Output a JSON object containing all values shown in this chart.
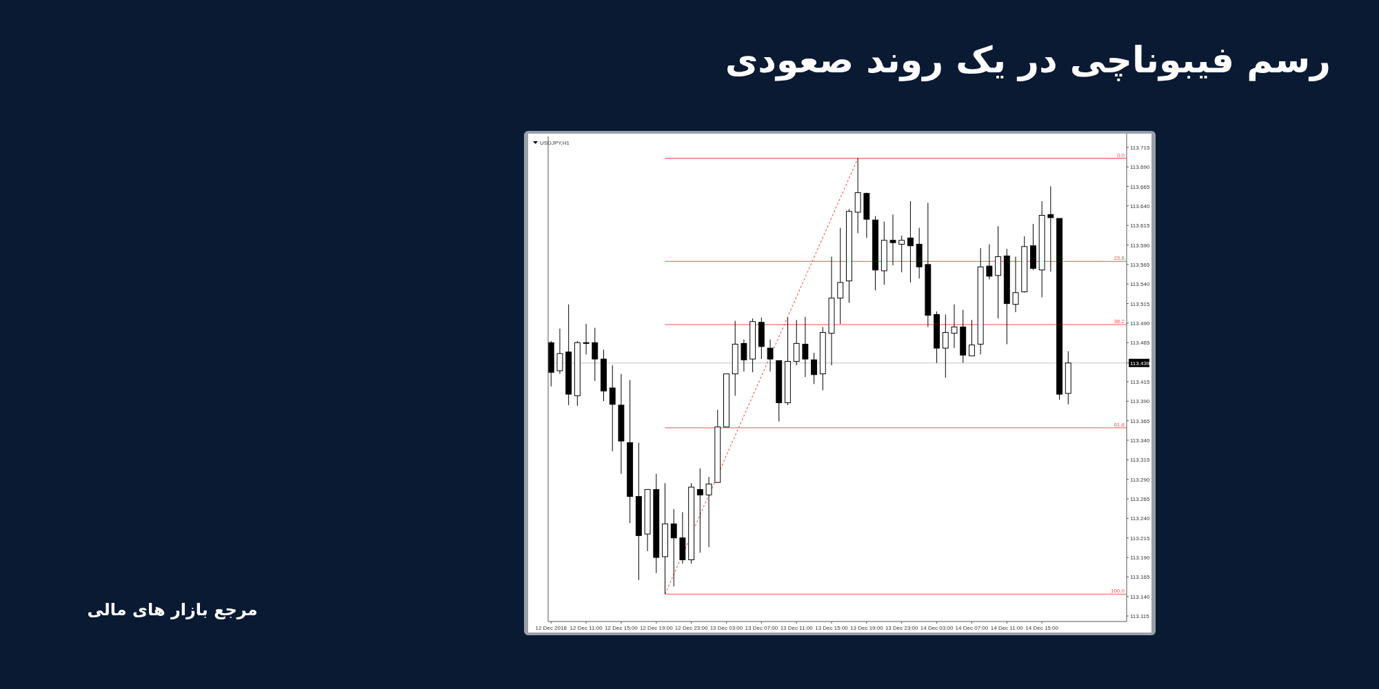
{
  "chart_data": {
    "type": "candlestick",
    "title": "رسم فیبوناچی در یک روند صعودی",
    "annotations": [
      "USDJPY,H1",
      "مرجع بازار های مالی",
      {
        "text": "0.0",
        "x": "2018-12-15T00:40",
        "y": 113.701
      },
      {
        "text": "23.6",
        "x": "2018-12-15T00:40",
        "y": 113.569
      },
      {
        "text": "38.2",
        "x": "2018-12-15T00:40",
        "y": 113.488
      },
      {
        "text": "61.8",
        "x": "2018-12-15T00:40",
        "y": 113.356
      },
      {
        "text": "100.0",
        "x": "2018-12-15T00:40",
        "y": 113.143
      }
    ],
    "x": [
      "2018-12-12T07:00",
      "2018-12-12T08:00",
      "2018-12-12T09:00",
      "2018-12-12T10:00",
      "2018-12-12T11:00",
      "2018-12-12T12:00",
      "2018-12-12T13:00",
      "2018-12-12T14:00",
      "2018-12-12T15:00",
      "2018-12-12T16:00",
      "2018-12-12T17:00",
      "2018-12-12T18:00",
      "2018-12-12T19:00",
      "2018-12-12T20:00",
      "2018-12-12T21:00",
      "2018-12-12T22:00",
      "2018-12-12T23:00",
      "2018-12-13T00:00",
      "2018-12-13T01:00",
      "2018-12-13T02:00",
      "2018-12-13T03:00",
      "2018-12-13T04:00",
      "2018-12-13T05:00",
      "2018-12-13T06:00",
      "2018-12-13T07:00",
      "2018-12-13T08:00",
      "2018-12-13T09:00",
      "2018-12-13T10:00",
      "2018-12-13T11:00",
      "2018-12-13T12:00",
      "2018-12-13T13:00",
      "2018-12-13T14:00",
      "2018-12-13T15:00",
      "2018-12-13T16:00",
      "2018-12-13T17:00",
      "2018-12-13T18:00",
      "2018-12-13T19:00",
      "2018-12-13T20:00",
      "2018-12-13T21:00",
      "2018-12-13T22:00",
      "2018-12-13T23:00",
      "2018-12-14T00:00",
      "2018-12-14T01:00",
      "2018-12-14T02:00",
      "2018-12-14T03:00",
      "2018-12-14T04:00",
      "2018-12-14T05:00",
      "2018-12-14T06:00",
      "2018-12-14T07:00",
      "2018-12-14T08:00",
      "2018-12-14T09:00",
      "2018-12-14T10:00",
      "2018-12-14T11:00",
      "2018-12-14T12:00",
      "2018-12-14T13:00",
      "2018-12-14T14:00",
      "2018-12-14T15:00",
      "2018-12-14T16:00",
      "2018-12-14T17:00",
      "2018-12-14T18:00"
    ],
    "ohlc": [
      [
        113.465,
        113.467,
        113.409,
        113.427
      ],
      [
        113.429,
        113.483,
        113.425,
        113.451
      ],
      [
        113.453,
        113.514,
        113.385,
        113.399
      ],
      [
        113.397,
        113.467,
        113.384,
        113.465
      ],
      [
        113.465,
        113.489,
        113.45,
        113.464
      ],
      [
        113.465,
        113.484,
        113.416,
        113.444
      ],
      [
        113.444,
        113.456,
        113.39,
        113.403
      ],
      [
        113.407,
        113.436,
        113.326,
        113.386
      ],
      [
        113.385,
        113.425,
        113.297,
        113.339
      ],
      [
        113.337,
        113.417,
        113.234,
        113.268
      ],
      [
        113.268,
        113.337,
        113.161,
        113.218
      ],
      [
        113.22,
        113.277,
        113.198,
        113.277
      ],
      [
        113.277,
        113.297,
        113.17,
        113.19
      ],
      [
        113.191,
        113.285,
        113.143,
        113.233
      ],
      [
        113.233,
        113.252,
        113.153,
        113.215
      ],
      [
        113.215,
        113.248,
        113.182,
        113.187
      ],
      [
        113.187,
        113.285,
        113.182,
        113.28
      ],
      [
        113.277,
        113.304,
        113.196,
        113.27
      ],
      [
        113.27,
        113.293,
        113.203,
        113.284
      ],
      [
        113.286,
        113.379,
        113.286,
        113.357
      ],
      [
        113.357,
        113.425,
        113.357,
        113.425
      ],
      [
        113.425,
        113.493,
        113.397,
        113.463
      ],
      [
        113.464,
        113.469,
        113.428,
        113.443
      ],
      [
        113.444,
        113.496,
        113.427,
        113.492
      ],
      [
        113.491,
        113.497,
        113.444,
        113.46
      ],
      [
        113.458,
        113.469,
        113.428,
        113.444
      ],
      [
        113.442,
        113.442,
        113.364,
        113.388
      ],
      [
        113.388,
        113.497,
        113.385,
        113.441
      ],
      [
        113.441,
        113.494,
        113.436,
        113.464
      ],
      [
        113.463,
        113.498,
        113.421,
        113.444
      ],
      [
        113.443,
        113.452,
        113.412,
        113.424
      ],
      [
        113.425,
        113.485,
        113.404,
        113.478
      ],
      [
        113.477,
        113.575,
        113.436,
        113.522
      ],
      [
        113.522,
        113.612,
        113.489,
        113.542
      ],
      [
        113.544,
        113.636,
        113.516,
        113.633
      ],
      [
        113.632,
        113.701,
        113.605,
        113.657
      ],
      [
        113.656,
        113.657,
        113.599,
        113.623
      ],
      [
        113.622,
        113.627,
        113.532,
        113.558
      ],
      [
        113.557,
        113.62,
        113.539,
        113.596
      ],
      [
        113.596,
        113.629,
        113.564,
        113.593
      ],
      [
        113.591,
        113.602,
        113.555,
        113.596
      ],
      [
        113.599,
        113.646,
        113.542,
        113.589
      ],
      [
        113.591,
        113.612,
        113.547,
        113.562
      ],
      [
        113.565,
        113.644,
        113.485,
        113.5
      ],
      [
        113.501,
        113.505,
        113.439,
        113.458
      ],
      [
        113.458,
        113.501,
        113.42,
        113.478
      ],
      [
        113.477,
        113.514,
        113.458,
        113.485
      ],
      [
        113.485,
        113.507,
        113.439,
        113.449
      ],
      [
        113.448,
        113.494,
        113.448,
        113.462
      ],
      [
        113.463,
        113.586,
        113.45,
        113.562
      ],
      [
        113.563,
        113.591,
        113.546,
        113.55
      ],
      [
        113.551,
        113.614,
        113.496,
        113.575
      ],
      [
        113.576,
        113.585,
        113.463,
        113.515
      ],
      [
        113.514,
        113.575,
        113.504,
        113.529
      ],
      [
        113.53,
        113.601,
        113.529,
        113.588
      ],
      [
        113.589,
        113.617,
        113.558,
        113.56
      ],
      [
        113.558,
        113.646,
        113.523,
        113.628
      ],
      [
        113.629,
        113.665,
        113.556,
        113.625
      ],
      [
        113.624,
        113.624,
        113.392,
        113.399
      ],
      [
        113.4,
        113.454,
        113.386,
        113.439
      ]
    ],
    "series": [
      {
        "type": "line",
        "color": "#ff5a5a",
        "line_style": "dashed",
        "x": [
          "2018-12-12T20:00",
          "2018-12-13T18:00"
        ],
        "values": [
          113.143,
          113.701
        ]
      }
    ],
    "ref_lines": [
      {
        "axis": "y",
        "value": 113.701,
        "color": "#ff7070"
      },
      {
        "axis": "y",
        "value": 113.569,
        "color": "#ff7070"
      },
      {
        "axis": "y",
        "value": 113.488,
        "color": "#ff7070"
      },
      {
        "axis": "y",
        "value": 113.356,
        "color": "#ff7070"
      },
      {
        "axis": "y",
        "value": 113.143,
        "color": "#ff7070"
      },
      {
        "axis": "y",
        "value": 113.439,
        "color": "#d8d8d8"
      }
    ],
    "xlim": [
      "2018-12-12T06:40",
      "2018-12-15T00:40"
    ],
    "xticks": [
      {
        "value": "2018-12-12T07:00",
        "label": "12 Dec 2018"
      },
      {
        "value": "2018-12-12T11:00",
        "label": "12 Dec 11:00"
      },
      {
        "value": "2018-12-12T15:00",
        "label": "12 Dec 15:00"
      },
      {
        "value": "2018-12-12T19:00",
        "label": "12 Dec 19:00"
      },
      {
        "value": "2018-12-12T23:00",
        "label": "12 Dec 23:00"
      },
      {
        "value": "2018-12-13T03:00",
        "label": "13 Dec 03:00"
      },
      {
        "value": "2018-12-13T07:00",
        "label": "13 Dec 07:00"
      },
      {
        "value": "2018-12-13T11:00",
        "label": "13 Dec 11:00"
      },
      {
        "value": "2018-12-13T15:00",
        "label": "13 Dec 15:00"
      },
      {
        "value": "2018-12-13T19:00",
        "label": "13 Dec 19:00"
      },
      {
        "value": "2018-12-13T23:00",
        "label": "13 Dec 23:00"
      },
      {
        "value": "2018-12-14T03:00",
        "label": "14 Dec 03:00"
      },
      {
        "value": "2018-12-14T07:00",
        "label": "14 Dec 07:00"
      },
      {
        "value": "2018-12-14T11:00",
        "label": "14 Dec 11:00"
      },
      {
        "value": "2018-12-14T15:00",
        "label": "14 Dec 15:00"
      }
    ],
    "ylim": [
      113.108,
      113.729
    ],
    "yticks": [
      113.115,
      {
        "value": 113.14,
        "label": "113.140"
      },
      113.165,
      {
        "value": 113.19,
        "label": "113.190"
      },
      113.215,
      {
        "value": 113.24,
        "label": "113.240"
      },
      113.265,
      {
        "value": 113.29,
        "label": "113.290"
      },
      113.315,
      {
        "value": 113.34,
        "label": "113.340"
      },
      113.365,
      {
        "value": 113.39,
        "label": "113.390"
      },
      113.415,
      113.439,
      113.465,
      {
        "value": 113.49,
        "label": "113.490"
      },
      113.515,
      {
        "value": 113.54,
        "label": "113.540"
      },
      113.565,
      {
        "value": 113.59,
        "label": "113.590"
      },
      113.615,
      {
        "value": 113.64,
        "label": "113.640"
      },
      113.665,
      {
        "value": 113.69,
        "label": "113.690"
      },
      113.715
    ]
  }
}
